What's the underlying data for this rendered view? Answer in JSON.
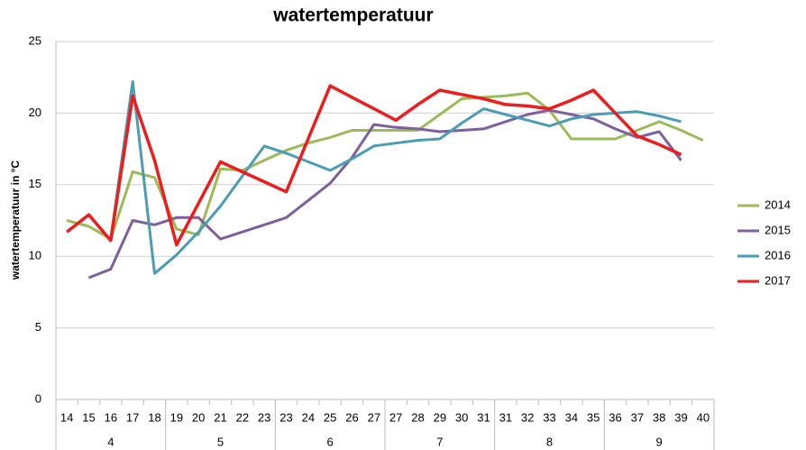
{
  "chart_data": {
    "type": "line",
    "title": "watertemperatuur",
    "y_label": "watertemperatuur in °C",
    "categories": [
      "14",
      "15",
      "16",
      "17",
      "18",
      "19",
      "20",
      "21",
      "22",
      "23",
      "23",
      "24",
      "25",
      "26",
      "27",
      "27",
      "28",
      "29",
      "30",
      "31",
      "31",
      "32",
      "33",
      "34",
      "35",
      "36",
      "37",
      "38",
      "39",
      "40"
    ],
    "groups": [
      "4",
      "5",
      "6",
      "7",
      "8",
      "9"
    ],
    "ylim": [
      0,
      25
    ],
    "yticks": [
      0,
      5,
      10,
      15,
      20,
      25
    ],
    "grid": true,
    "legend": "right",
    "series": [
      {
        "name": "2014",
        "color": "#9bbb59",
        "values": [
          12.5,
          12.1,
          11.2,
          15.9,
          15.5,
          11.9,
          11.5,
          16.1,
          16.0,
          16.7,
          17.4,
          17.9,
          18.3,
          18.8,
          18.8,
          18.8,
          18.8,
          19.9,
          21.0,
          21.1,
          21.2,
          21.4,
          20.2,
          18.2,
          18.2,
          18.2,
          18.8,
          19.4,
          18.8,
          18.1
        ]
      },
      {
        "name": "2015",
        "color": "#7d5f9e",
        "values": [
          null,
          8.5,
          9.1,
          12.5,
          12.2,
          12.7,
          12.7,
          11.2,
          11.7,
          12.2,
          12.7,
          13.9,
          15.1,
          16.9,
          19.2,
          19.0,
          18.9,
          18.7,
          18.8,
          18.9,
          19.4,
          19.9,
          20.2,
          19.9,
          19.6,
          18.9,
          18.3,
          18.7,
          16.7,
          null
        ]
      },
      {
        "name": "2016",
        "color": "#4a9db4",
        "values": [
          null,
          null,
          11.2,
          22.2,
          8.8,
          10.1,
          11.7,
          13.5,
          15.6,
          17.7,
          17.2,
          16.6,
          16.0,
          16.8,
          17.7,
          17.9,
          18.1,
          18.2,
          19.3,
          20.3,
          19.9,
          19.5,
          19.1,
          19.6,
          19.9,
          20.0,
          20.1,
          19.8,
          19.4,
          null
        ]
      },
      {
        "name": "2017",
        "color": "#ee1c1c",
        "values": [
          11.7,
          12.9,
          11.1,
          21.2,
          16.7,
          10.8,
          13.7,
          16.6,
          15.9,
          15.2,
          14.5,
          18.2,
          21.9,
          21.1,
          20.3,
          19.5,
          20.6,
          21.6,
          21.3,
          21.0,
          20.6,
          20.5,
          20.3,
          20.9,
          21.6,
          20.0,
          18.4,
          17.8,
          17.1,
          null
        ]
      }
    ]
  }
}
